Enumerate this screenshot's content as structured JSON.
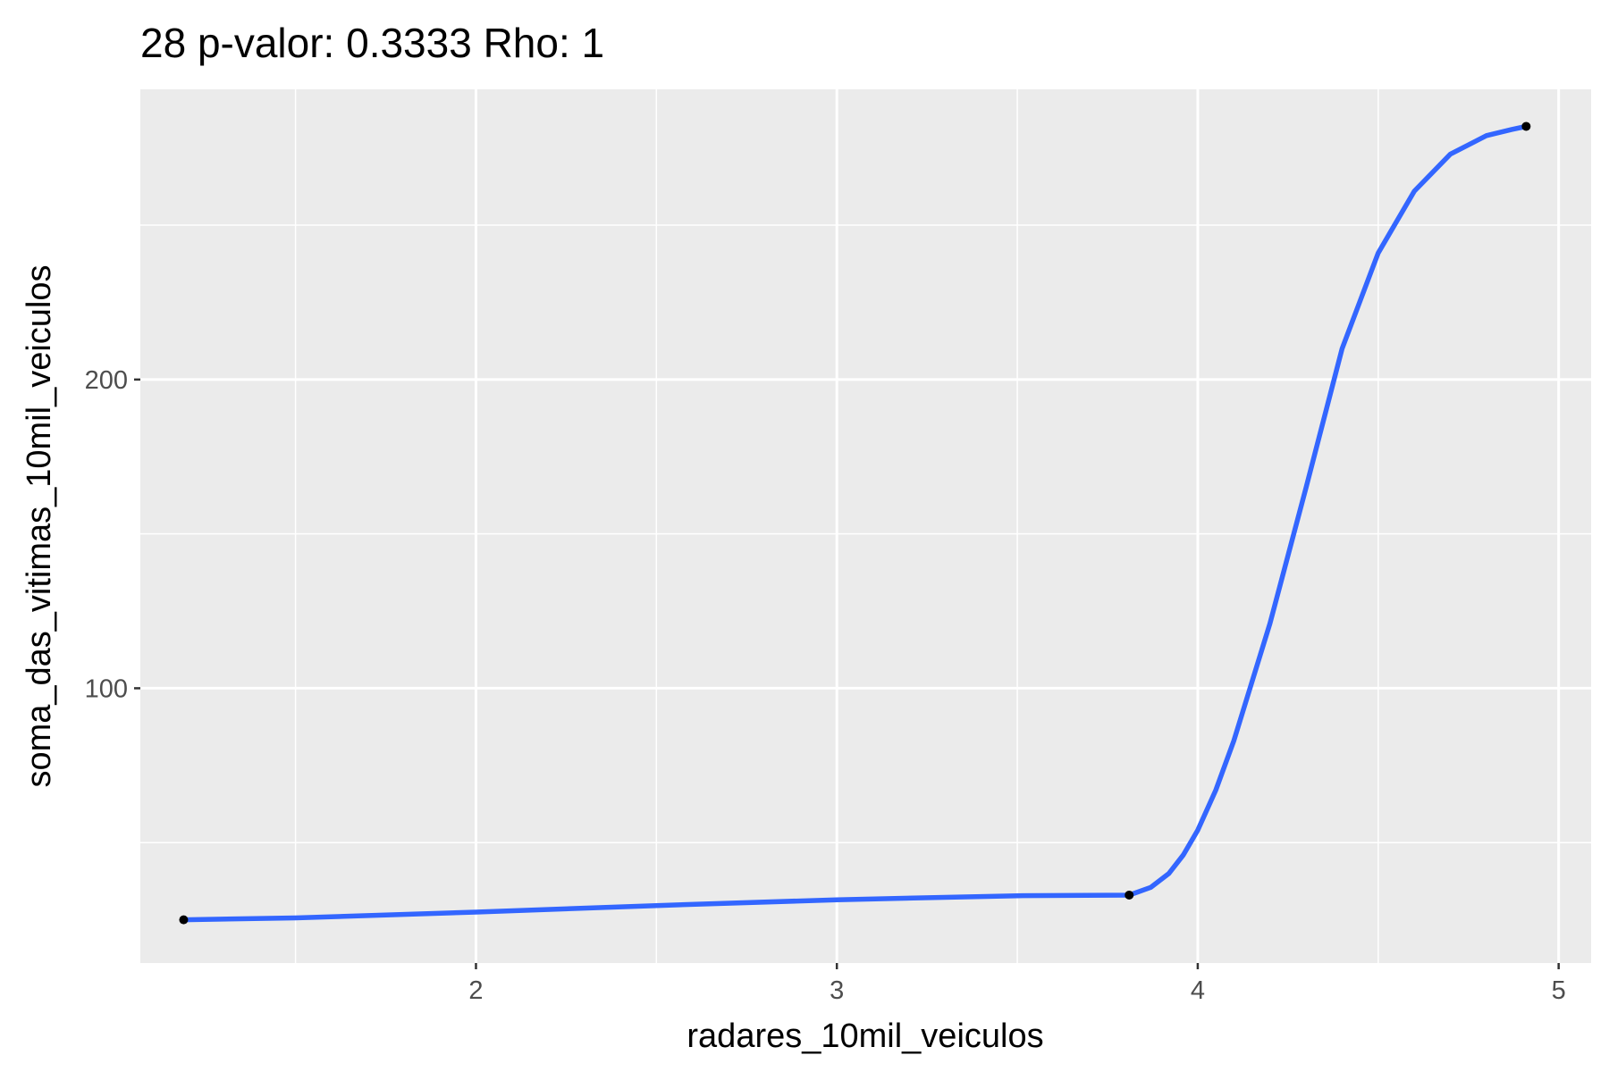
{
  "chart_data": {
    "type": "line",
    "title": "28 p-valor: 0.3333 Rho: 1",
    "xlabel": "radares_10mil_veiculos",
    "ylabel": "soma_das_vitimas_10mil_veiculos",
    "xlim": [
      1.07,
      5.09
    ],
    "ylim": [
      11,
      294
    ],
    "x_ticks": [
      2,
      3,
      4,
      5
    ],
    "y_ticks": [
      100,
      200
    ],
    "x_minor_ticks": [
      1.5,
      2.5,
      3.5,
      4.5
    ],
    "y_minor_ticks": [
      50,
      150,
      250
    ],
    "grid": true,
    "background": "#ebebeb",
    "grid_color": "#ffffff",
    "line_color": "#3366ff",
    "point_color": "#000000",
    "series": [
      {
        "kind": "points",
        "x": [
          1.19,
          3.81,
          4.91
        ],
        "y": [
          25,
          33,
          282
        ]
      },
      {
        "kind": "smooth",
        "x": [
          1.19,
          1.5,
          2.0,
          2.5,
          3.0,
          3.5,
          3.81,
          3.87,
          3.92,
          3.96,
          4.0,
          4.05,
          4.1,
          4.2,
          4.3,
          4.4,
          4.5,
          4.6,
          4.7,
          4.8,
          4.87,
          4.91
        ],
        "y": [
          25,
          25.6,
          27.5,
          29.6,
          31.5,
          32.8,
          33,
          35.5,
          40,
          46,
          54,
          67,
          83,
          121,
          165,
          210,
          241,
          261,
          273,
          279,
          281,
          282
        ]
      }
    ]
  }
}
